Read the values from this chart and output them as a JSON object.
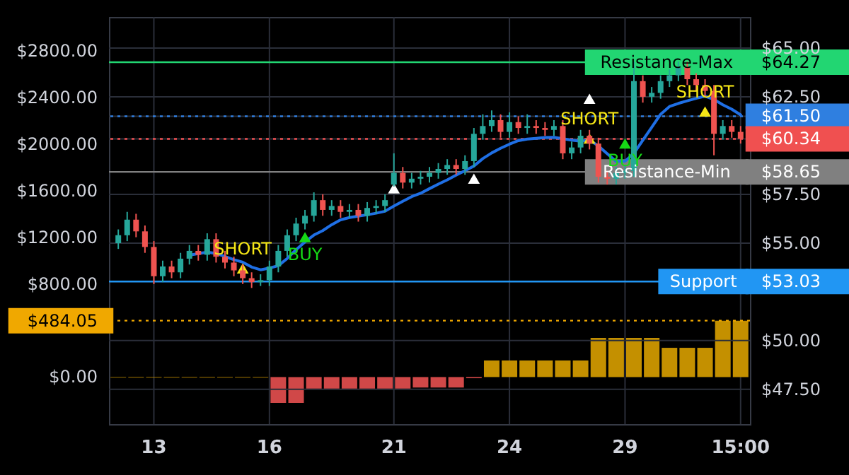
{
  "chart_data": {
    "type": "candlestick",
    "categories": [
      null,
      null,
      null,
      null,
      "13",
      null,
      null,
      null,
      null,
      null,
      null,
      null,
      null,
      null,
      null,
      null,
      null,
      "16",
      null,
      null,
      null,
      null,
      null,
      null,
      null,
      null,
      null,
      null,
      null,
      null,
      null,
      "21",
      null,
      null,
      null,
      null,
      null,
      null,
      null,
      null,
      null,
      null,
      null,
      null,
      "24",
      null,
      null,
      null,
      null,
      null,
      null,
      null,
      null,
      null,
      null,
      null,
      null,
      "29",
      null,
      null,
      null,
      null,
      null,
      null,
      null,
      null,
      null,
      null,
      null,
      null,
      "15:00"
    ],
    "ylim": [
      -404,
      3091
    ],
    "yticks": [
      {
        "value": 0,
        "label": "$0.00"
      },
      {
        "value": 484.05,
        "label": "$484.05"
      },
      {
        "value": 800,
        "label": "$800.00"
      },
      {
        "value": 1200,
        "label": "$1200.00"
      },
      {
        "value": 1600,
        "label": "$1600.00"
      },
      {
        "value": 2000,
        "label": "$2000.00"
      },
      {
        "value": 2400,
        "label": "$2400.00"
      },
      {
        "value": 2800,
        "label": "$2800.00"
      }
    ],
    "y2lim": [
      45.72,
      66.59
    ],
    "y2ticks": [
      {
        "value": 47.5,
        "label": "$47.50"
      },
      {
        "value": 50,
        "label": "$50.00"
      },
      {
        "value": 53.03,
        "label": "$53.03"
      },
      {
        "value": 55,
        "label": "$55.00"
      },
      {
        "value": 57.5,
        "label": "$57.50"
      },
      {
        "value": 58.65,
        "label": "$58.65"
      },
      {
        "value": 60.34,
        "label": "$60.34"
      },
      {
        "value": 61.5,
        "label": "$61.50"
      },
      {
        "value": 62.5,
        "label": "$62.50"
      },
      {
        "value": 64.27,
        "label": "$64.27"
      },
      {
        "value": 65,
        "label": "$65.00"
      }
    ],
    "grid": true,
    "series": [
      {
        "type": "bar",
        "axis": "y",
        "values": [
          -5,
          null,
          -5,
          null,
          -5,
          null,
          -5,
          null,
          -5,
          null,
          -5,
          null,
          -5,
          null,
          -5,
          null,
          -5,
          null,
          -222,
          null,
          -222,
          null,
          -100,
          null,
          -100,
          null,
          -100,
          null,
          -100,
          null,
          -100,
          null,
          -100,
          null,
          -90,
          null,
          -90,
          null,
          -90,
          null,
          -10,
          null,
          142,
          null,
          142,
          null,
          142,
          null,
          142,
          null,
          142,
          null,
          142,
          null,
          336,
          null,
          336,
          null,
          336,
          null,
          336,
          null,
          251,
          null,
          251,
          null,
          251,
          null,
          484.05,
          null,
          484.05
        ],
        "colors": [
          "#c49000",
          null,
          "#c49000",
          null,
          "#c49000",
          null,
          "#c49000",
          null,
          "#c49000",
          null,
          "#c49000",
          null,
          "#c49000",
          null,
          "#c49000",
          null,
          "#c49000",
          null,
          "#d04848",
          null,
          "#d04848",
          null,
          "#d04848",
          null,
          "#d04848",
          null,
          "#d04848",
          null,
          "#d04848",
          null,
          "#d04848",
          null,
          "#d04848",
          null,
          "#d04848",
          null,
          "#d04848",
          null,
          "#d04848",
          null,
          "#d04848",
          null,
          "#c49000",
          null,
          "#c49000",
          null,
          "#c49000",
          null,
          "#c49000",
          null,
          "#c49000",
          null,
          "#c49000",
          null,
          "#c49000",
          null,
          "#c49000",
          null,
          "#c49000",
          null,
          "#c49000",
          null,
          "#c49000",
          null,
          "#c49000",
          null,
          "#c49000",
          null,
          "#c49000",
          null,
          "#c49000"
        ]
      },
      {
        "type": "line",
        "axis": "y2",
        "color": "#1f6fe5",
        "values": [
          null,
          null,
          null,
          null,
          null,
          null,
          null,
          null,
          54.38,
          54.46,
          54.53,
          54.47,
          54.31,
          54.15,
          54.02,
          53.77,
          53.63,
          53.72,
          53.84,
          54.21,
          54.66,
          55.06,
          55.41,
          55.64,
          55.94,
          56.19,
          56.31,
          56.38,
          56.45,
          56.53,
          56.63,
          56.9,
          57.14,
          57.38,
          57.55,
          57.79,
          58.02,
          58.24,
          58.48,
          58.71,
          58.95,
          59.33,
          59.62,
          59.86,
          60.07,
          60.25,
          60.33,
          60.37,
          60.41,
          60.42,
          60.35,
          60.28,
          60.22,
          60.28,
          59.98,
          59.58,
          59.19,
          59.2,
          59.6,
          60.27,
          60.93,
          61.6,
          62.0,
          62.16,
          62.29,
          62.42,
          62.53,
          62.36,
          62.09,
          61.86,
          61.57
        ]
      },
      {
        "type": "scatter",
        "axis": "y2",
        "color": "#f5e616",
        "marker": "triangle",
        "values": [
          null,
          null,
          null,
          null,
          null,
          null,
          null,
          null,
          null,
          null,
          null,
          null,
          null,
          null,
          53.7,
          null,
          null,
          null,
          null,
          null,
          null,
          null,
          null,
          null,
          null,
          null,
          null,
          null,
          null,
          null,
          null,
          null,
          null,
          null,
          null,
          null,
          null,
          null,
          null,
          null,
          null,
          null,
          null,
          null,
          null,
          null,
          null,
          null,
          null,
          null,
          null,
          null,
          null,
          60.36,
          null,
          null,
          null,
          null,
          null,
          null,
          null,
          null,
          null,
          null,
          null,
          null,
          61.74,
          null,
          null,
          null,
          null
        ],
        "value_labels": [
          null,
          null,
          null,
          null,
          null,
          null,
          null,
          null,
          null,
          null,
          null,
          null,
          null,
          null,
          "SHORT",
          null,
          null,
          null,
          null,
          null,
          null,
          null,
          null,
          null,
          null,
          null,
          null,
          null,
          null,
          null,
          null,
          null,
          null,
          null,
          null,
          null,
          null,
          null,
          null,
          null,
          null,
          null,
          null,
          null,
          null,
          null,
          null,
          null,
          null,
          null,
          null,
          null,
          null,
          "SHORT",
          null,
          null,
          null,
          null,
          null,
          null,
          null,
          null,
          null,
          null,
          null,
          null,
          "SHORT",
          null,
          null,
          null,
          null
        ]
      },
      {
        "type": "scatter",
        "axis": "y2",
        "color": "#16d916",
        "marker": "triangle",
        "values": [
          null,
          null,
          null,
          null,
          null,
          null,
          null,
          null,
          null,
          null,
          null,
          null,
          null,
          null,
          null,
          null,
          null,
          null,
          null,
          null,
          null,
          55.3,
          null,
          null,
          null,
          null,
          null,
          null,
          null,
          null,
          null,
          null,
          null,
          null,
          null,
          null,
          null,
          null,
          null,
          null,
          null,
          null,
          null,
          null,
          null,
          null,
          null,
          null,
          null,
          null,
          null,
          null,
          null,
          null,
          null,
          null,
          null,
          60.1,
          null,
          null,
          null,
          null,
          null,
          null,
          null,
          null,
          null,
          null,
          null,
          null,
          null
        ],
        "value_labels": [
          null,
          null,
          null,
          null,
          null,
          null,
          null,
          null,
          null,
          null,
          null,
          null,
          null,
          null,
          null,
          null,
          null,
          null,
          null,
          null,
          null,
          "BUY",
          null,
          null,
          null,
          null,
          null,
          null,
          null,
          null,
          null,
          null,
          null,
          null,
          null,
          null,
          null,
          null,
          null,
          null,
          null,
          null,
          null,
          null,
          null,
          null,
          null,
          null,
          null,
          null,
          null,
          null,
          null,
          null,
          null,
          null,
          null,
          "BUY",
          null,
          null,
          null,
          null,
          null,
          null,
          null,
          null,
          null,
          null,
          null,
          null,
          null
        ]
      },
      {
        "type": "scatter",
        "axis": "y2",
        "color": "#ffffff",
        "marker": "triangle",
        "values": [
          null,
          null,
          null,
          null,
          null,
          null,
          null,
          null,
          null,
          null,
          null,
          null,
          null,
          null,
          null,
          null,
          null,
          null,
          null,
          null,
          null,
          null,
          null,
          null,
          null,
          null,
          null,
          null,
          null,
          null,
          null,
          57.8,
          null,
          null,
          null,
          null,
          null,
          null,
          null,
          null,
          58.3,
          null,
          null,
          null,
          null,
          null,
          null,
          null,
          null,
          null,
          null,
          null,
          null,
          62.4,
          null,
          null,
          null,
          null,
          null,
          null,
          null,
          null,
          null,
          null,
          null,
          null,
          null,
          null,
          null,
          null,
          null
        ]
      },
      {
        "axis": "y2",
        "ohlc": [
          [
            55.0,
            55.7,
            54.7,
            55.4
          ],
          [
            55.4,
            56.6,
            55.1,
            56.2
          ],
          [
            56.2,
            56.5,
            55.3,
            55.6
          ],
          [
            55.6,
            55.9,
            54.5,
            54.8
          ],
          [
            54.8,
            55.1,
            52.9,
            53.3
          ],
          [
            53.3,
            54.1,
            53.0,
            53.8
          ],
          [
            53.8,
            54.1,
            53.2,
            53.5
          ],
          [
            53.5,
            54.5,
            53.2,
            54.2
          ],
          [
            54.2,
            54.9,
            53.9,
            54.6
          ],
          [
            54.6,
            54.9,
            54.1,
            54.4
          ],
          [
            54.4,
            55.5,
            54.1,
            55.2
          ],
          [
            55.2,
            55.5,
            54.0,
            54.3
          ],
          [
            54.3,
            54.6,
            53.7,
            54.0
          ],
          [
            54.0,
            54.3,
            53.3,
            53.6
          ],
          [
            53.6,
            53.9,
            52.9,
            53.2
          ],
          [
            53.2,
            53.5,
            52.7,
            53.0
          ],
          [
            53.0,
            53.4,
            52.8,
            53.1
          ],
          [
            53.1,
            54.1,
            52.8,
            53.8
          ],
          [
            53.8,
            54.9,
            53.5,
            54.6
          ],
          [
            54.6,
            55.7,
            54.3,
            55.4
          ],
          [
            55.4,
            56.3,
            55.1,
            56.0
          ],
          [
            56.0,
            56.7,
            55.7,
            56.4
          ],
          [
            56.4,
            57.6,
            56.1,
            57.2
          ],
          [
            57.2,
            57.5,
            56.4,
            56.7
          ],
          [
            56.7,
            57.2,
            56.4,
            56.9
          ],
          [
            56.9,
            57.2,
            56.3,
            56.6
          ],
          [
            56.6,
            57.0,
            56.3,
            56.7
          ],
          [
            56.7,
            57.0,
            56.1,
            56.4
          ],
          [
            56.4,
            57.1,
            56.1,
            56.8
          ],
          [
            56.8,
            57.2,
            56.5,
            56.9
          ],
          [
            56.9,
            57.5,
            56.6,
            57.2
          ],
          [
            58.0,
            59.6,
            57.9,
            58.6
          ],
          [
            58.6,
            58.9,
            57.8,
            58.1
          ],
          [
            58.1,
            58.6,
            57.8,
            58.3
          ],
          [
            58.3,
            58.7,
            58.0,
            58.4
          ],
          [
            58.4,
            58.9,
            58.1,
            58.6
          ],
          [
            58.6,
            59.1,
            58.3,
            58.8
          ],
          [
            58.8,
            59.3,
            58.5,
            59.0
          ],
          [
            59.0,
            59.3,
            58.5,
            58.8
          ],
          [
            58.8,
            59.5,
            58.5,
            59.2
          ],
          [
            59.2,
            60.9,
            58.9,
            60.6
          ],
          [
            60.6,
            61.6,
            60.3,
            61.0
          ],
          [
            61.0,
            61.8,
            60.7,
            61.3
          ],
          [
            61.3,
            61.6,
            60.4,
            60.7
          ],
          [
            60.7,
            61.7,
            60.4,
            61.2
          ],
          [
            61.2,
            61.5,
            60.6,
            60.9
          ],
          [
            60.9,
            61.6,
            60.6,
            61.0
          ],
          [
            61.0,
            61.3,
            60.6,
            60.9
          ],
          [
            60.9,
            61.2,
            60.5,
            60.8
          ],
          [
            60.8,
            61.3,
            60.5,
            61.0
          ],
          [
            61.0,
            61.3,
            59.3,
            59.6
          ],
          [
            59.6,
            60.2,
            59.3,
            59.9
          ],
          [
            59.9,
            60.8,
            59.6,
            60.5
          ],
          [
            60.5,
            60.8,
            59.8,
            60.1
          ],
          [
            60.1,
            60.4,
            58.1,
            58.4
          ],
          [
            58.4,
            58.7,
            58.0,
            58.3
          ],
          [
            58.3,
            58.9,
            58.0,
            58.6
          ],
          [
            58.6,
            59.0,
            58.3,
            58.7
          ],
          [
            58.7,
            64.3,
            58.4,
            63.3
          ],
          [
            63.3,
            63.6,
            62.2,
            62.5
          ],
          [
            62.5,
            63.0,
            62.2,
            62.7
          ],
          [
            62.7,
            63.6,
            62.4,
            63.3
          ],
          [
            63.3,
            63.9,
            63.0,
            63.6
          ],
          [
            63.6,
            64.3,
            63.3,
            64.0
          ],
          [
            64.0,
            64.3,
            63.1,
            63.4
          ],
          [
            63.4,
            63.7,
            62.8,
            63.1
          ],
          [
            63.1,
            63.4,
            62.5,
            62.8
          ],
          [
            62.8,
            63.1,
            59.5,
            60.6
          ],
          [
            60.6,
            61.3,
            60.3,
            61.0
          ],
          [
            61.0,
            61.3,
            60.4,
            60.7
          ],
          [
            60.7,
            61.0,
            60.1,
            60.34
          ]
        ],
        "colors": [
          "#26a69a",
          "#26a69a",
          "#ef5350",
          "#ef5350",
          "#ef5350",
          "#26a69a",
          "#ef5350",
          "#26a69a",
          "#26a69a",
          "#ef5350",
          "#26a69a",
          "#ef5350",
          "#ef5350",
          "#ef5350",
          "#ef5350",
          "#ef5350",
          "#26a69a",
          "#26a69a",
          "#26a69a",
          "#26a69a",
          "#26a69a",
          "#26a69a",
          "#26a69a",
          "#ef5350",
          "#26a69a",
          "#ef5350",
          "#26a69a",
          "#ef5350",
          "#26a69a",
          "#26a69a",
          "#26a69a",
          "#26a69a",
          "#ef5350",
          "#26a69a",
          "#26a69a",
          "#26a69a",
          "#26a69a",
          "#26a69a",
          "#ef5350",
          "#26a69a",
          "#26a69a",
          "#26a69a",
          "#26a69a",
          "#ef5350",
          "#26a69a",
          "#ef5350",
          "#26a69a",
          "#ef5350",
          "#ef5350",
          "#26a69a",
          "#ef5350",
          "#26a69a",
          "#26a69a",
          "#ef5350",
          "#ef5350",
          "#ef5350",
          "#26a69a",
          "#26a69a",
          "#26a69a",
          "#ef5350",
          "#26a69a",
          "#26a69a",
          "#26a69a",
          "#26a69a",
          "#ef5350",
          "#ef5350",
          "#ef5350",
          "#ef5350",
          "#26a69a",
          "#ef5350",
          "#ef5350"
        ]
      }
    ],
    "ref_lines": [
      {
        "axis": "y2",
        "value": 64.27,
        "label": "Resistance-Max",
        "color": "#22d672",
        "line_style": "solid"
      },
      {
        "axis": "y2",
        "value": 61.5,
        "color": "#2f7fe0",
        "line_style": "dotted"
      },
      {
        "axis": "y2",
        "value": 60.34,
        "color": "#f05050",
        "line_style": "dotted"
      },
      {
        "axis": "y2",
        "value": 58.65,
        "label": "Resistance-Min",
        "color": "#808080",
        "line_style": "solid"
      },
      {
        "axis": "y2",
        "value": 53.03,
        "label": "Support",
        "color": "#2196f3",
        "line_style": "solid"
      },
      {
        "axis": "y",
        "value": 484.05,
        "color": "#f0a800",
        "line_style": "dotted"
      }
    ]
  }
}
